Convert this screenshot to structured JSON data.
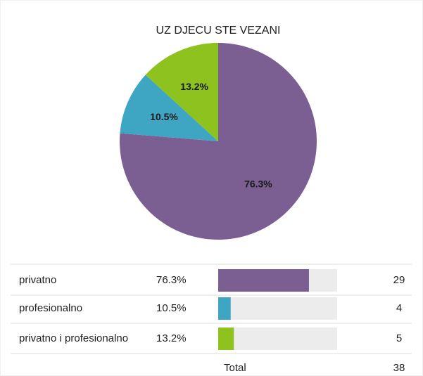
{
  "chart_data": {
    "type": "pie",
    "title": "UZ DJECU STE VEZANI",
    "categories": [
      "privatno",
      "profesionalno",
      "privatno i profesionalno"
    ],
    "values": [
      76.3,
      10.5,
      13.2
    ],
    "value_labels": [
      "76.3%",
      "10.5%",
      "13.2%"
    ],
    "colors": [
      "#7b5e92",
      "#3ea5c3",
      "#8dc21f"
    ],
    "counts": [
      29,
      4,
      5
    ],
    "total_label": "Total",
    "total": 38
  }
}
